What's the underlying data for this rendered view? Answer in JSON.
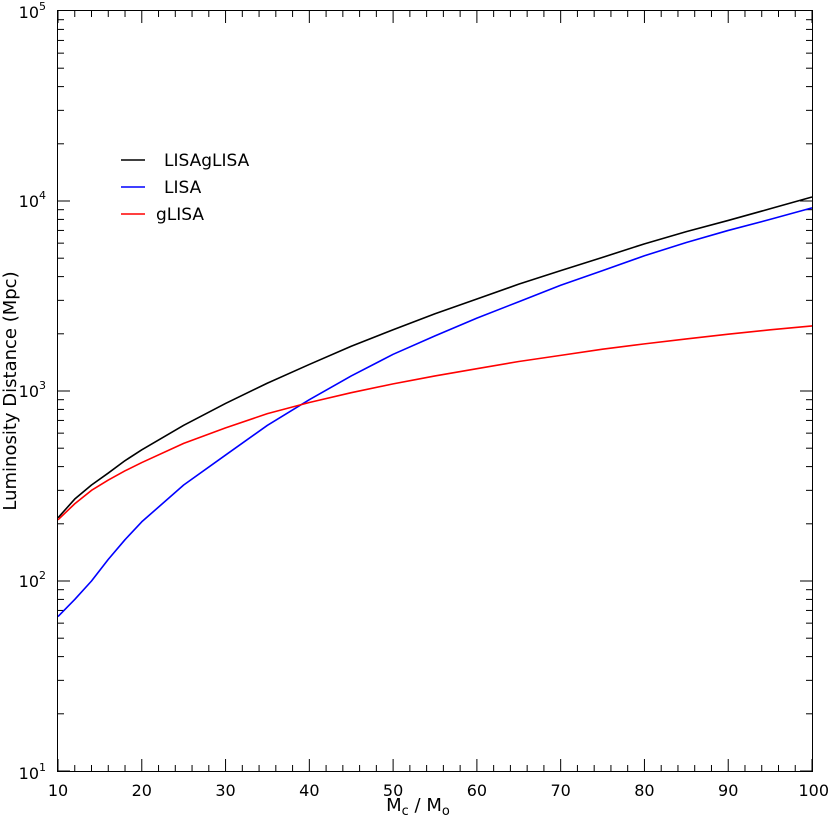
{
  "chart_data": {
    "type": "line",
    "title": "",
    "xlabel": {
      "main": "M",
      "sub": "c",
      "sep": " / ",
      "main2": "M",
      "sub2": "o"
    },
    "ylabel": "Luminosity Distance (Mpc)",
    "xlim": [
      10,
      100
    ],
    "ylim": [
      10,
      100000
    ],
    "yscale": "log",
    "grid": false,
    "legend_position": "upper-left",
    "x_ticks": [
      "10",
      "20",
      "30",
      "40",
      "50",
      "60",
      "70",
      "80",
      "90",
      "100"
    ],
    "y_ticks": [
      {
        "base": "10",
        "exp": "1"
      },
      {
        "base": "10",
        "exp": "2"
      },
      {
        "base": "10",
        "exp": "3"
      },
      {
        "base": "10",
        "exp": "4"
      },
      {
        "base": "10",
        "exp": "5"
      }
    ],
    "x": [
      10,
      12,
      14,
      16,
      18,
      20,
      25,
      30,
      35,
      40,
      45,
      50,
      55,
      60,
      65,
      70,
      75,
      80,
      85,
      90,
      95,
      100
    ],
    "series": [
      {
        "name": "LISAgLISA",
        "color": "#000000",
        "values": [
          215,
          270,
          320,
          370,
          430,
          490,
          660,
          860,
          1100,
          1380,
          1720,
          2100,
          2550,
          3050,
          3650,
          4300,
          5050,
          5950,
          6900,
          7900,
          9100,
          10500
        ]
      },
      {
        "name": "LISA",
        "color": "#0000ff",
        "values": [
          65,
          80,
          100,
          130,
          165,
          205,
          320,
          460,
          660,
          900,
          1200,
          1560,
          1950,
          2420,
          2950,
          3600,
          4300,
          5150,
          6050,
          7000,
          8000,
          9200
        ]
      },
      {
        "name": "gLISA",
        "color": "#ff0000",
        "values": [
          210,
          255,
          300,
          340,
          380,
          420,
          530,
          640,
          760,
          870,
          980,
          1090,
          1200,
          1310,
          1430,
          1540,
          1660,
          1770,
          1880,
          1990,
          2100,
          2200
        ]
      }
    ]
  }
}
